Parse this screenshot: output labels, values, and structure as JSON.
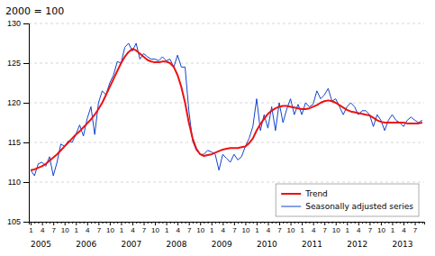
{
  "chart_data": {
    "type": "line",
    "title": "2000 = 100",
    "categories": [
      "1",
      null,
      null,
      "4",
      null,
      null,
      "7",
      null,
      null,
      "10",
      null,
      null,
      "1",
      null,
      null,
      "4",
      null,
      null,
      "7",
      null,
      null,
      "10",
      null,
      null,
      "1",
      null,
      null,
      "4",
      null,
      null,
      "7",
      null,
      null,
      "10",
      null,
      null,
      "1",
      null,
      null,
      "4",
      null,
      null,
      "7",
      null,
      null,
      "10",
      null,
      null,
      "1",
      null,
      null,
      "4",
      null,
      null,
      "7",
      null,
      null,
      "10",
      null,
      null,
      "1",
      null,
      null,
      "4",
      null,
      null,
      "7",
      null,
      null,
      "10",
      null,
      null,
      "1",
      null,
      null,
      "4",
      null,
      null,
      "7",
      null,
      null,
      "10",
      null,
      null,
      "1",
      null,
      null,
      "4",
      null,
      null,
      "7",
      null,
      null,
      "10",
      null,
      null,
      "1",
      null,
      null,
      "4",
      null,
      null,
      "7",
      null,
      null
    ],
    "series": [
      {
        "name": "Trend",
        "color": "#ee1111",
        "values": [
          111.5,
          111.6,
          111.8,
          112.0,
          112.3,
          112.7,
          113.1,
          113.5,
          114.0,
          114.5,
          115.0,
          115.5,
          116.0,
          116.4,
          116.9,
          117.4,
          117.9,
          118.5,
          119.2,
          120.0,
          121.0,
          122.0,
          123.0,
          124.0,
          125.0,
          125.8,
          126.4,
          126.8,
          126.6,
          126.2,
          125.8,
          125.4,
          125.2,
          125.1,
          125.1,
          125.2,
          125.2,
          125.0,
          124.5,
          123.5,
          122.0,
          120.0,
          117.5,
          115.5,
          114.2,
          113.5,
          113.3,
          113.4,
          113.5,
          113.7,
          113.9,
          114.1,
          114.2,
          114.3,
          114.3,
          114.3,
          114.4,
          114.5,
          114.9,
          115.5,
          116.5,
          117.3,
          118.0,
          118.6,
          119.0,
          119.3,
          119.5,
          119.6,
          119.6,
          119.5,
          119.4,
          119.3,
          119.2,
          119.2,
          119.3,
          119.5,
          119.7,
          120.0,
          120.2,
          120.3,
          120.2,
          120.0,
          119.7,
          119.4,
          119.1,
          118.9,
          118.8,
          118.7,
          118.6,
          118.5,
          118.4,
          118.1,
          117.8,
          117.6,
          117.5,
          117.5,
          117.5,
          117.5,
          117.5,
          117.5,
          117.4,
          117.4,
          117.4,
          117.4,
          117.5
        ]
      },
      {
        "name": "Seasonally adjusted series",
        "color": "#1144cc",
        "values": [
          111.5,
          110.8,
          112.3,
          112.5,
          112.0,
          113.2,
          110.8,
          112.5,
          114.8,
          114.5,
          115.2,
          115.0,
          116.0,
          117.2,
          115.8,
          118.0,
          119.5,
          116.0,
          120.0,
          121.5,
          121.0,
          122.5,
          123.5,
          125.2,
          125.0,
          127.0,
          127.5,
          126.5,
          127.5,
          125.5,
          126.2,
          125.8,
          125.5,
          125.5,
          125.3,
          125.8,
          125.3,
          125.5,
          124.5,
          126.0,
          124.5,
          124.5,
          119.0,
          115.2,
          114.0,
          113.5,
          113.5,
          114.0,
          113.8,
          113.5,
          111.5,
          113.5,
          113.0,
          112.5,
          113.5,
          112.8,
          113.2,
          114.5,
          115.5,
          117.0,
          120.5,
          116.5,
          118.5,
          116.8,
          119.5,
          116.5,
          120.0,
          117.5,
          119.2,
          120.5,
          118.5,
          119.8,
          118.5,
          120.0,
          119.5,
          119.8,
          121.5,
          120.5,
          121.0,
          121.8,
          120.2,
          120.5,
          119.5,
          118.5,
          119.5,
          120.0,
          119.5,
          118.5,
          119.0,
          119.0,
          118.5,
          117.0,
          118.5,
          117.8,
          116.5,
          117.8,
          118.5,
          117.8,
          117.5,
          117.0,
          117.8,
          118.2,
          117.8,
          117.5,
          117.8
        ]
      }
    ],
    "ylim": [
      105,
      130
    ],
    "yticks": [
      105,
      110,
      115,
      120,
      125,
      130
    ],
    "grid": true,
    "legend": "lower-right",
    "annotations": [
      {
        "text": "2005",
        "category_index": 0
      },
      {
        "text": "2006",
        "category_index": 12
      },
      {
        "text": "2007",
        "category_index": 24
      },
      {
        "text": "2008",
        "category_index": 36
      },
      {
        "text": "2009",
        "category_index": 48
      },
      {
        "text": "2010",
        "category_index": 60
      },
      {
        "text": "2011",
        "category_index": 72
      },
      {
        "text": "2012",
        "category_index": 84
      },
      {
        "text": "2013",
        "category_index": 96
      }
    ]
  }
}
